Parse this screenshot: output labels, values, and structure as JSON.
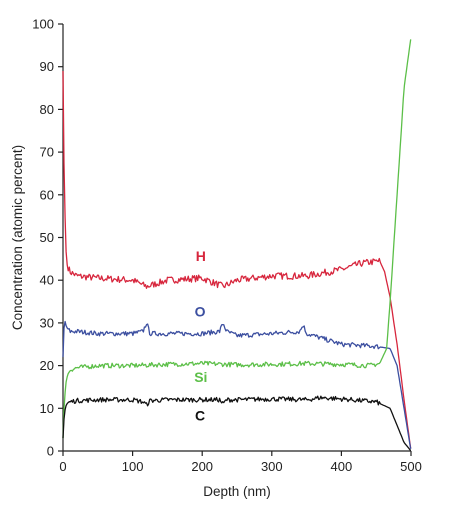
{
  "chart_data": {
    "type": "line",
    "xlabel": "Depth (nm)",
    "ylabel": "Concentration (atomic percent)",
    "xlim": [
      0,
      500
    ],
    "ylim": [
      0,
      100
    ],
    "x_ticks": [
      "0",
      "100",
      "200",
      "300",
      "400",
      "500"
    ],
    "y_ticks": [
      "0",
      "10",
      "20",
      "30",
      "40",
      "50",
      "60",
      "70",
      "80",
      "90",
      "100"
    ],
    "grid": false,
    "legend": "inline labels",
    "series": [
      {
        "name": "H",
        "color": "#d7263d",
        "label_at": [
          198,
          44.5
        ],
        "x": [
          0,
          2,
          5,
          10,
          20,
          50,
          100,
          120,
          150,
          200,
          230,
          250,
          300,
          350,
          400,
          430,
          455,
          462,
          470,
          480,
          490,
          500
        ],
        "y": [
          89,
          60,
          44,
          42,
          41,
          40.5,
          40,
          38.5,
          40,
          40.5,
          38.5,
          40,
          41,
          41,
          42.5,
          44,
          44.5,
          42,
          36,
          25,
          12,
          0
        ]
      },
      {
        "name": "O",
        "color": "#3c4fa0",
        "label_at": [
          197,
          31.5
        ],
        "x": [
          0,
          2,
          5,
          10,
          20,
          50,
          100,
          115,
          120,
          125,
          150,
          200,
          225,
          230,
          235,
          250,
          300,
          340,
          345,
          350,
          400,
          450,
          470,
          480,
          490,
          500
        ],
        "y": [
          22,
          31,
          29,
          28,
          28,
          27.5,
          27.5,
          28,
          30,
          27.5,
          27.5,
          27.5,
          28,
          30,
          28,
          27,
          27.5,
          28,
          29.5,
          27.5,
          25,
          24.5,
          24,
          20,
          10,
          0
        ]
      },
      {
        "name": "Si",
        "color": "#5cbf48",
        "label_at": [
          198,
          16.2
        ],
        "x": [
          0,
          2,
          5,
          10,
          20,
          50,
          100,
          150,
          200,
          250,
          300,
          350,
          400,
          440,
          455,
          465,
          470,
          480,
          490,
          500
        ],
        "y": [
          3,
          12,
          17,
          19,
          19.5,
          20,
          20,
          20.3,
          20.5,
          20.2,
          20.3,
          20.5,
          20.3,
          20,
          20.5,
          24,
          35,
          60,
          85,
          97
        ]
      },
      {
        "name": "C",
        "color": "#111111",
        "label_at": [
          197,
          7.2
        ],
        "x": [
          0,
          2,
          5,
          10,
          20,
          50,
          100,
          115,
          120,
          125,
          150,
          200,
          225,
          230,
          235,
          250,
          300,
          350,
          370,
          400,
          450,
          470,
          480,
          490,
          500
        ],
        "y": [
          3,
          9,
          11,
          11.5,
          11.8,
          12,
          12,
          11.5,
          10.8,
          11.8,
          12,
          12,
          12,
          11,
          12,
          12,
          12.2,
          12,
          12.5,
          12.2,
          11.5,
          10,
          6,
          2,
          0
        ]
      }
    ]
  }
}
